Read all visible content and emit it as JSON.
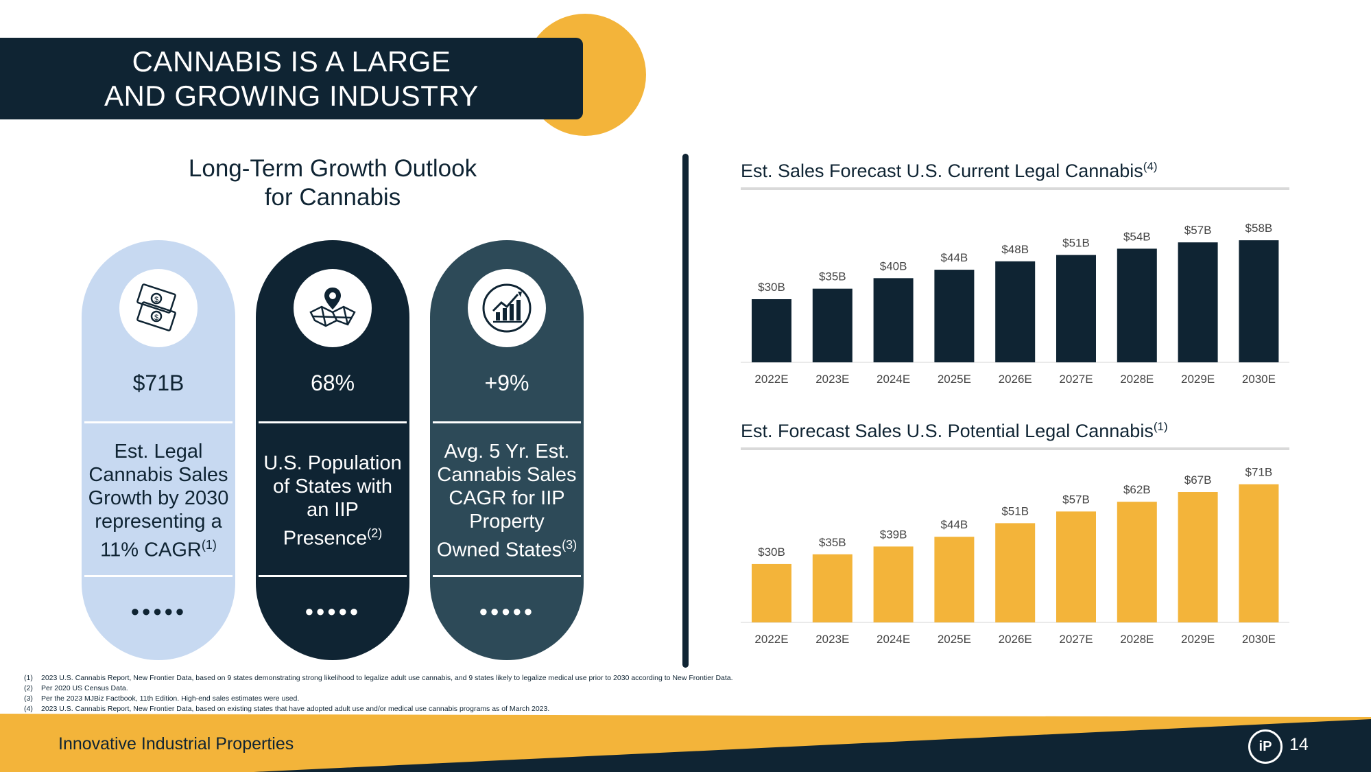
{
  "title": {
    "line1": "CANNABIS IS A LARGE",
    "line2": "AND GROWING INDUSTRY"
  },
  "growth_heading": {
    "line1": "Long-Term Growth Outlook",
    "line2": "for Cannabis"
  },
  "pills": [
    {
      "value": "$71B",
      "description": "Est. Legal Cannabis Sales Growth by 2030 representing a 11% CAGR",
      "footnote_ref": "(1)",
      "icon": "money-icon",
      "bg": "#c7d9f1",
      "fg": "#0f2433"
    },
    {
      "value": "68%",
      "description": "U.S. Population of States with an IIP Presence",
      "footnote_ref": "(2)",
      "icon": "map-pin-icon",
      "bg": "#0f2433",
      "fg": "#ffffff"
    },
    {
      "value": "+9%",
      "description": "Avg. 5 Yr. Est. Cannabis Sales CAGR for IIP Property Owned States",
      "footnote_ref": "(3)",
      "icon": "growth-chart-icon",
      "bg": "#2d4a58",
      "fg": "#ffffff"
    }
  ],
  "pill_dots": "●●●●●",
  "chart_data": [
    {
      "type": "bar",
      "title": "Est. Sales Forecast U.S. Current Legal Cannabis",
      "title_footnote": "(4)",
      "categories": [
        "2022E",
        "2023E",
        "2024E",
        "2025E",
        "2026E",
        "2027E",
        "2028E",
        "2029E",
        "2030E"
      ],
      "values": [
        30,
        35,
        40,
        44,
        48,
        51,
        54,
        57,
        58
      ],
      "data_labels": [
        "$30B",
        "$35B",
        "$40B",
        "$44B",
        "$48B",
        "$51B",
        "$54B",
        "$57B",
        "$58B"
      ],
      "unit": "$B",
      "color": "#0f2433",
      "ylim": [
        0,
        60
      ]
    },
    {
      "type": "bar",
      "title": "Est. Forecast Sales U.S. Potential Legal Cannabis",
      "title_footnote": "(1)",
      "categories": [
        "2022E",
        "2023E",
        "2024E",
        "2025E",
        "2026E",
        "2027E",
        "2028E",
        "2029E",
        "2030E"
      ],
      "values": [
        30,
        35,
        39,
        44,
        51,
        57,
        62,
        67,
        71
      ],
      "data_labels": [
        "$30B",
        "$35B",
        "$39B",
        "$44B",
        "$51B",
        "$57B",
        "$62B",
        "$67B",
        "$71B"
      ],
      "unit": "$B",
      "color": "#f3b43a",
      "ylim": [
        0,
        73
      ]
    }
  ],
  "footnotes": [
    {
      "num": "(1)",
      "text": "2023 U.S. Cannabis Report, New Frontier Data, based on 9 states demonstrating strong likelihood to legalize adult use cannabis, and 9 states likely to legalize medical use prior to 2030 according to New Frontier Data."
    },
    {
      "num": "(2)",
      "text": "Per 2020 US Census Data."
    },
    {
      "num": "(3)",
      "text": "Per the 2023 MJBiz Factbook, 11th Edition. High-end sales estimates were used."
    },
    {
      "num": "(4)",
      "text": "2023 U.S. Cannabis Report, New Frontier Data, based on existing states that have adopted adult use and/or medical use cannabis programs as of March 2023."
    }
  ],
  "footer": {
    "company": "Innovative Industrial Properties",
    "logo_text": "iP",
    "page_number": "14"
  },
  "colors": {
    "navy": "#0f2433",
    "gold": "#f3b43a",
    "light_blue": "#c7d9f1",
    "slate": "#2d4a58"
  }
}
